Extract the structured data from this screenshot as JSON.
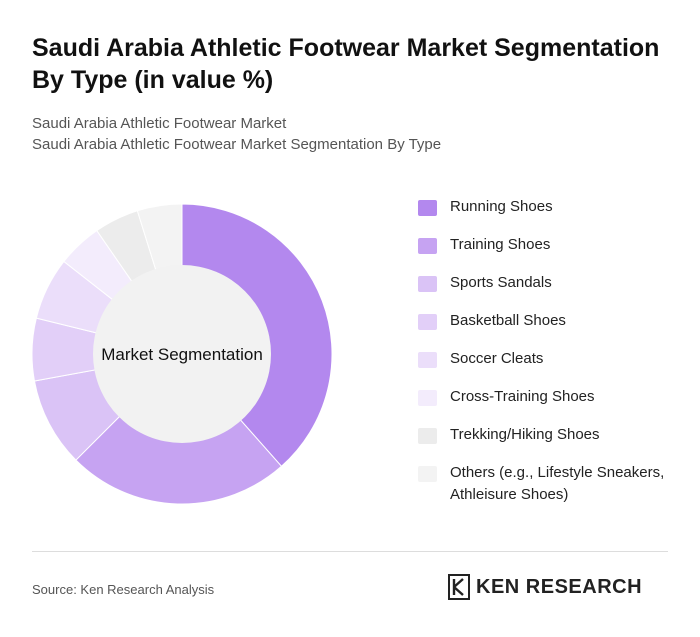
{
  "header": {
    "title": "Saudi Arabia Athletic Footwear Market Segmentation By Type (in value %)",
    "subtitle_line1": "Saudi Arabia Athletic Footwear Market",
    "subtitle_line2": "Saudi Arabia Athletic Footwear Market Segmentation By Type"
  },
  "chart_data": {
    "type": "pie",
    "variant": "donut",
    "center_label": "Market Segmentation",
    "legend_position": "right",
    "series": [
      {
        "name": "Running Shoes",
        "value": 40,
        "color": "#b388ee"
      },
      {
        "name": "Training Shoes",
        "value": 25,
        "color": "#c6a3f2"
      },
      {
        "name": "Sports Sandals",
        "value": 10,
        "color": "#dac3f6"
      },
      {
        "name": "Basketball Shoes",
        "value": 7,
        "color": "#e2cff8"
      },
      {
        "name": "Soccer Cleats",
        "value": 7,
        "color": "#ebdefa"
      },
      {
        "name": "Cross-Training Shoes",
        "value": 5,
        "color": "#f3ecfc"
      },
      {
        "name": "Trekking/Hiking Shoes",
        "value": 5,
        "color": "#ececec"
      },
      {
        "name": "Others (e.g., Lifestyle Sneakers, Athleisure Shoes)",
        "value": 5,
        "color": "#f3f3f3"
      }
    ]
  },
  "footer": {
    "source": "Source: Ken Research Analysis",
    "brand": "KEN RESEARCH",
    "brand_mark": "K"
  },
  "colors": {
    "center_fill": "#f2f2f2",
    "divider": "#dddddd"
  }
}
